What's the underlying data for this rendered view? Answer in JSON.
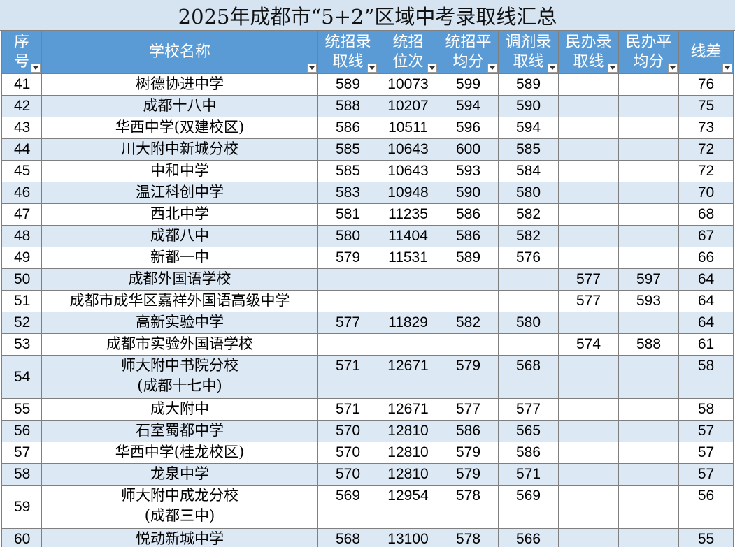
{
  "title": "2025年成都市“5+2”区域中考录取线汇总",
  "headers": [
    {
      "label": "序号"
    },
    {
      "label": "学校名称"
    },
    {
      "label": "统招录取线"
    },
    {
      "label": "统招位次"
    },
    {
      "label": "统招平均分"
    },
    {
      "label": "调剂录取线"
    },
    {
      "label": "民办录取线"
    },
    {
      "label": "民办平均分"
    },
    {
      "label": "线差"
    }
  ],
  "rows": [
    {
      "idx": "41",
      "name": "树德协进中学",
      "name2": "",
      "a": "589",
      "b": "10073",
      "c": "599",
      "d": "589",
      "e": "",
      "f": "",
      "g": "76"
    },
    {
      "idx": "42",
      "name": "成都十八中",
      "name2": "",
      "a": "588",
      "b": "10207",
      "c": "594",
      "d": "590",
      "e": "",
      "f": "",
      "g": "75"
    },
    {
      "idx": "43",
      "name": "华西中学(双建校区)",
      "name2": "",
      "a": "586",
      "b": "10511",
      "c": "596",
      "d": "594",
      "e": "",
      "f": "",
      "g": "73"
    },
    {
      "idx": "44",
      "name": "川大附中新城分校",
      "name2": "",
      "a": "585",
      "b": "10643",
      "c": "600",
      "d": "585",
      "e": "",
      "f": "",
      "g": "72"
    },
    {
      "idx": "45",
      "name": "中和中学",
      "name2": "",
      "a": "585",
      "b": "10643",
      "c": "593",
      "d": "584",
      "e": "",
      "f": "",
      "g": "72"
    },
    {
      "idx": "46",
      "name": "温江科创中学",
      "name2": "",
      "a": "583",
      "b": "10948",
      "c": "590",
      "d": "580",
      "e": "",
      "f": "",
      "g": "70"
    },
    {
      "idx": "47",
      "name": "西北中学",
      "name2": "",
      "a": "581",
      "b": "11235",
      "c": "586",
      "d": "582",
      "e": "",
      "f": "",
      "g": "68"
    },
    {
      "idx": "48",
      "name": "成都八中",
      "name2": "",
      "a": "580",
      "b": "11404",
      "c": "586",
      "d": "582",
      "e": "",
      "f": "",
      "g": "67"
    },
    {
      "idx": "49",
      "name": "新都一中",
      "name2": "",
      "a": "579",
      "b": "11531",
      "c": "589",
      "d": "576",
      "e": "",
      "f": "",
      "g": "66"
    },
    {
      "idx": "50",
      "name": "成都外国语学校",
      "name2": "",
      "a": "",
      "b": "",
      "c": "",
      "d": "",
      "e": "577",
      "f": "597",
      "g": "64"
    },
    {
      "idx": "51",
      "name": "成都市成华区嘉祥外国语高级中学",
      "name2": "",
      "a": "",
      "b": "",
      "c": "",
      "d": "",
      "e": "577",
      "f": "593",
      "g": "64"
    },
    {
      "idx": "52",
      "name": "高新实验中学",
      "name2": "",
      "a": "577",
      "b": "11829",
      "c": "582",
      "d": "580",
      "e": "",
      "f": "",
      "g": "64"
    },
    {
      "idx": "53",
      "name": "成都市实验外国语学校",
      "name2": "",
      "a": "",
      "b": "",
      "c": "",
      "d": "",
      "e": "574",
      "f": "588",
      "g": "61"
    },
    {
      "idx": "54",
      "name": "师大附中书院分校",
      "name2": "(成都十七中)",
      "a": "571",
      "b": "12671",
      "c": "579",
      "d": "568",
      "e": "",
      "f": "",
      "g": "58"
    },
    {
      "idx": "55",
      "name": "成大附中",
      "name2": "",
      "a": "571",
      "b": "12671",
      "c": "577",
      "d": "577",
      "e": "",
      "f": "",
      "g": "58"
    },
    {
      "idx": "56",
      "name": "石室蜀都中学",
      "name2": "",
      "a": "570",
      "b": "12810",
      "c": "586",
      "d": "565",
      "e": "",
      "f": "",
      "g": "57"
    },
    {
      "idx": "57",
      "name": "华西中学(桂龙校区)",
      "name2": "",
      "a": "570",
      "b": "12810",
      "c": "579",
      "d": "586",
      "e": "",
      "f": "",
      "g": "57"
    },
    {
      "idx": "58",
      "name": "龙泉中学",
      "name2": "",
      "a": "570",
      "b": "12810",
      "c": "579",
      "d": "571",
      "e": "",
      "f": "",
      "g": "57"
    },
    {
      "idx": "59",
      "name": "师大附中成龙分校",
      "name2": "(成都三中)",
      "a": "569",
      "b": "12954",
      "c": "578",
      "d": "569",
      "e": "",
      "f": "",
      "g": "56"
    },
    {
      "idx": "60",
      "name": "悦动新城中学",
      "name2": "",
      "a": "568",
      "b": "13100",
      "c": "578",
      "d": "566",
      "e": "",
      "f": "",
      "g": "55"
    }
  ]
}
